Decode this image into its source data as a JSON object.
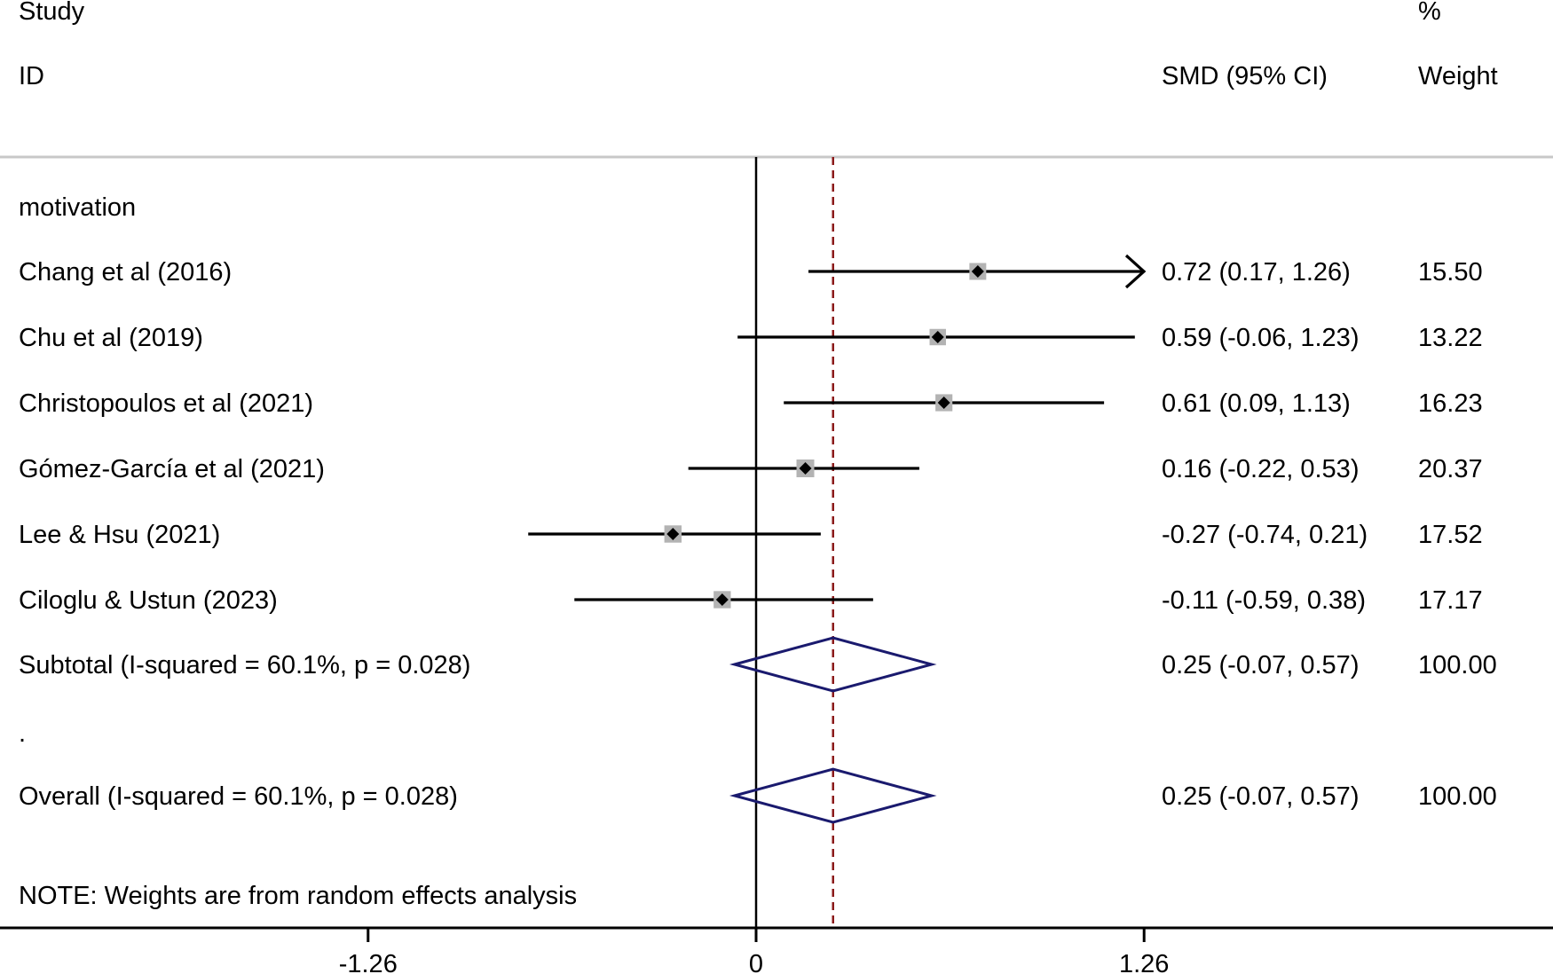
{
  "header": {
    "study_line1": "Study",
    "study_line2": "ID",
    "effect_label": "SMD (95% CI)",
    "weight_line1": "%",
    "weight_line2": "Weight"
  },
  "groups": [
    {
      "label": "motivation"
    }
  ],
  "separator_label": ".",
  "note": "NOTE: Weights are from random effects analysis",
  "colors": {
    "axis": "#000000",
    "ci_line": "#000000",
    "box": "#b3b3b3",
    "point": "#000000",
    "diamond": "#1a1a6e",
    "ref_line": "#8b1a1a",
    "divider": "#c8c8c8"
  },
  "chart_data": {
    "type": "forest",
    "measure": "SMD",
    "x_ticks": [
      -1.26,
      0,
      1.26
    ],
    "x_tick_labels": [
      "-1.26",
      "0",
      "1.26"
    ],
    "xlim": [
      -2.46,
      2.58
    ],
    "null_value": 0,
    "pooled_reference": 0.25,
    "studies": [
      {
        "name": "Chang et al (2016)",
        "smd": 0.72,
        "lower": 0.17,
        "upper": 1.26,
        "weight": 15.5,
        "ci_text": "0.72 (0.17, 1.26)",
        "weight_text": "15.50",
        "arrow_right": true
      },
      {
        "name": "Chu et al (2019)",
        "smd": 0.59,
        "lower": -0.06,
        "upper": 1.23,
        "weight": 13.22,
        "ci_text": "0.59 (-0.06, 1.23)",
        "weight_text": "13.22"
      },
      {
        "name": "Christopoulos et al (2021)",
        "smd": 0.61,
        "lower": 0.09,
        "upper": 1.13,
        "weight": 16.23,
        "ci_text": "0.61 (0.09, 1.13)",
        "weight_text": "16.23"
      },
      {
        "name": "Gómez-García et al (2021)",
        "smd": 0.16,
        "lower": -0.22,
        "upper": 0.53,
        "weight": 20.37,
        "ci_text": "0.16 (-0.22, 0.53)",
        "weight_text": "20.37"
      },
      {
        "name": "Lee & Hsu (2021)",
        "smd": -0.27,
        "lower": -0.74,
        "upper": 0.21,
        "weight": 17.52,
        "ci_text": "-0.27 (-0.74, 0.21)",
        "weight_text": "17.52"
      },
      {
        "name": "Ciloglu & Ustun (2023)",
        "smd": -0.11,
        "lower": -0.59,
        "upper": 0.38,
        "weight": 17.17,
        "ci_text": "-0.11 (-0.59, 0.38)",
        "weight_text": "17.17"
      }
    ],
    "subtotal": {
      "name": "Subtotal  (I-squared = 60.1%, p = 0.028)",
      "smd": 0.25,
      "lower": -0.07,
      "upper": 0.57,
      "ci_text": "0.25 (-0.07, 0.57)",
      "weight_text": "100.00"
    },
    "overall": {
      "name": "Overall  (I-squared = 60.1%, p = 0.028)",
      "smd": 0.25,
      "lower": -0.07,
      "upper": 0.57,
      "ci_text": "0.25 (-0.07, 0.57)",
      "weight_text": "100.00"
    }
  }
}
